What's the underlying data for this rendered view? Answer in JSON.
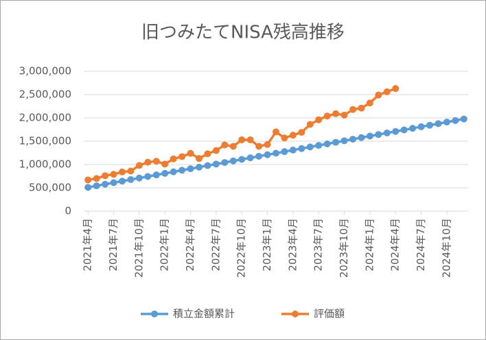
{
  "chart_data": {
    "type": "line",
    "title": "旧つみたてNISA残高推移",
    "categories": [
      "2021年4月",
      null,
      null,
      "2021年7月",
      null,
      null,
      "2021年10月",
      null,
      null,
      "2022年1月",
      null,
      null,
      "2022年4月",
      null,
      null,
      "2022年7月",
      null,
      null,
      "2022年10月",
      null,
      null,
      "2023年1月",
      null,
      null,
      "2023年4月",
      null,
      null,
      "2023年7月",
      null,
      null,
      "2023年10月",
      null,
      null,
      "2024年1月",
      null,
      null,
      "2024年4月",
      null,
      null,
      "2024年7月",
      null,
      null,
      "2024年10月",
      null,
      null
    ],
    "series": [
      {
        "name": "積立金額累計",
        "color": "#5b9bd5",
        "values": [
          510000,
          543000,
          577000,
          610000,
          643000,
          677000,
          710000,
          743000,
          777000,
          810000,
          843000,
          877000,
          910000,
          943000,
          977000,
          1010000,
          1043000,
          1077000,
          1110000,
          1143000,
          1177000,
          1210000,
          1243000,
          1277000,
          1310000,
          1343000,
          1377000,
          1410000,
          1443000,
          1477000,
          1510000,
          1543000,
          1577000,
          1610000,
          1643000,
          1677000,
          1710000,
          1743000,
          1777000,
          1810000,
          1843000,
          1877000,
          1910000,
          1943000,
          1977000
        ]
      },
      {
        "name": "評価額",
        "color": "#ed7d31",
        "values": [
          670000,
          700000,
          760000,
          790000,
          840000,
          860000,
          980000,
          1050000,
          1070000,
          1010000,
          1120000,
          1170000,
          1240000,
          1130000,
          1230000,
          1300000,
          1420000,
          1390000,
          1530000,
          1530000,
          1390000,
          1430000,
          1700000,
          1570000,
          1630000,
          1690000,
          1860000,
          1960000,
          2040000,
          2090000,
          2060000,
          2180000,
          2210000,
          2320000,
          2490000,
          2560000,
          2630000,
          null,
          null,
          null,
          null,
          null,
          null,
          null,
          null
        ]
      }
    ],
    "ylim": [
      0,
      3000000
    ],
    "yticks": [
      0,
      {
        "value": 500000,
        "label": "500,000"
      },
      {
        "value": 1000000,
        "label": "1,000,000"
      },
      {
        "value": 1500000,
        "label": "1,500,000"
      },
      {
        "value": 2000000,
        "label": "2,000,000"
      },
      {
        "value": 2500000,
        "label": "2,500,000"
      },
      {
        "value": 3000000,
        "label": "3,000,000"
      }
    ],
    "grid": true,
    "legend": "bottom"
  }
}
